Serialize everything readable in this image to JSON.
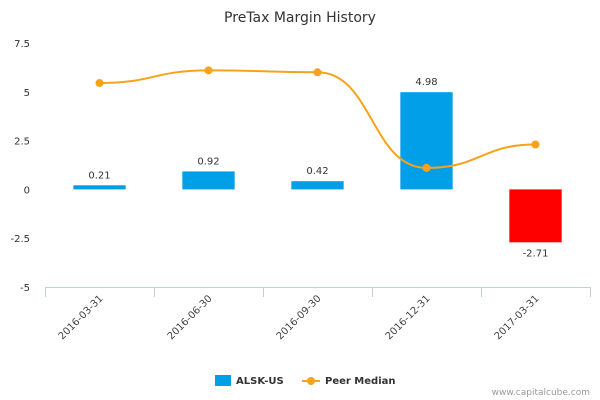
{
  "chart_data": {
    "type": "bar",
    "title": "PreTax Margin History",
    "categories": [
      "2016-03-31",
      "2016-06-30",
      "2016-09-30",
      "2016-12-31",
      "2017-03-31"
    ],
    "y_ticks": [
      "7.5",
      "5",
      "2.5",
      "0",
      "-2.5",
      "-5"
    ],
    "ylim": [
      -5,
      7.5
    ],
    "series": [
      {
        "name": "ALSK-US",
        "kind": "bar",
        "values": [
          0.21,
          0.92,
          0.42,
          4.98,
          -2.71
        ],
        "labels": [
          "0.21",
          "0.92",
          "0.42",
          "4.98",
          "-2.71"
        ],
        "color_positive": "#009fe8",
        "color_negative": "#ff0000"
      },
      {
        "name": "Peer Median",
        "kind": "line",
        "values": [
          5.45,
          6.1,
          6.0,
          1.1,
          2.3
        ],
        "color": "#f7a21b"
      }
    ],
    "grid": false,
    "legend_position": "bottom-center"
  },
  "credit": "www.capitalcube.com"
}
